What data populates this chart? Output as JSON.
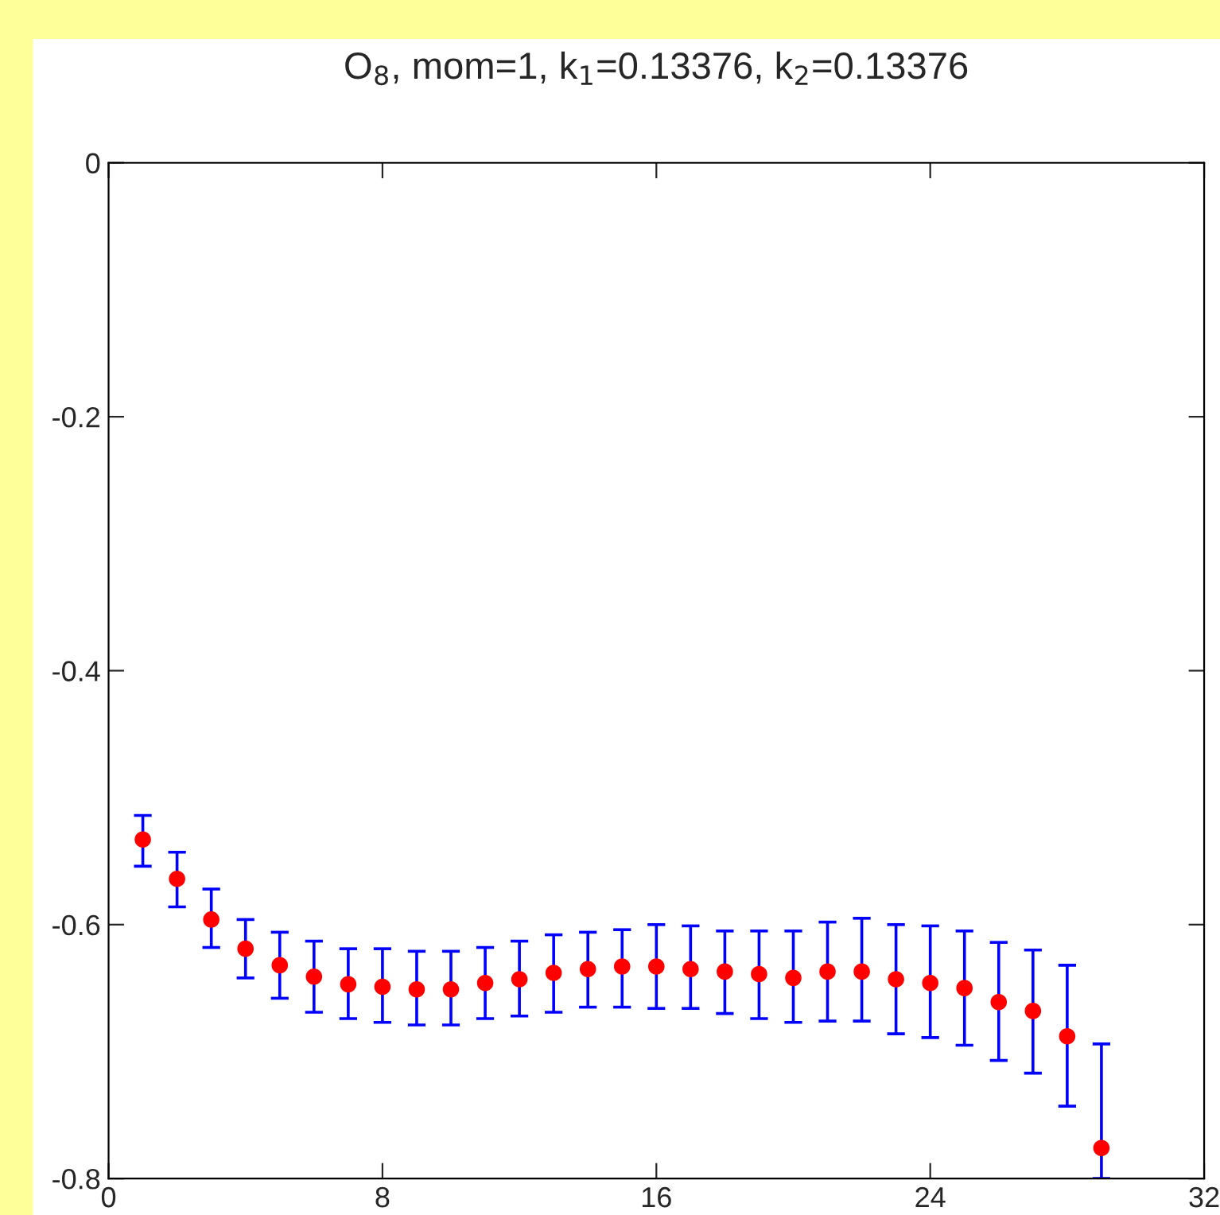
{
  "chart_data": {
    "type": "scatter",
    "title": "O$_{8}$, mom=1, k$_{1}$=0.13376, k$_{2}$=0.13376",
    "x": [
      1,
      2,
      3,
      4,
      5,
      6,
      7,
      8,
      9,
      10,
      11,
      12,
      13,
      14,
      15,
      16,
      17,
      18,
      19,
      20,
      21,
      22,
      23,
      24,
      25,
      26,
      27,
      28,
      29
    ],
    "series": [
      {
        "color": "#ff0000",
        "values": [
          -0.533,
          -0.564,
          -0.596,
          -0.619,
          -0.632,
          -0.641,
          -0.647,
          -0.649,
          -0.651,
          -0.651,
          -0.646,
          -0.643,
          -0.638,
          -0.635,
          -0.633,
          -0.633,
          -0.635,
          -0.637,
          -0.639,
          -0.642,
          -0.637,
          -0.637,
          -0.643,
          -0.646,
          -0.65,
          -0.661,
          -0.668,
          -0.688,
          -0.776
        ],
        "errors": [
          [
            -0.554,
            -0.514
          ],
          [
            -0.586,
            -0.543
          ],
          [
            -0.618,
            -0.572
          ],
          [
            -0.642,
            -0.596
          ],
          [
            -0.658,
            -0.606
          ],
          [
            -0.669,
            -0.613
          ],
          [
            -0.674,
            -0.619
          ],
          [
            -0.677,
            -0.619
          ],
          [
            -0.679,
            -0.621
          ],
          [
            -0.679,
            -0.621
          ],
          [
            -0.674,
            -0.618
          ],
          [
            -0.672,
            -0.613
          ],
          [
            -0.669,
            -0.608
          ],
          [
            -0.665,
            -0.606
          ],
          [
            -0.665,
            -0.604
          ],
          [
            -0.666,
            -0.6
          ],
          [
            -0.666,
            -0.601
          ],
          [
            -0.67,
            -0.605
          ],
          [
            -0.674,
            -0.605
          ],
          [
            -0.677,
            -0.605
          ],
          [
            -0.676,
            -0.598
          ],
          [
            -0.676,
            -0.595
          ],
          [
            -0.686,
            -0.6
          ],
          [
            -0.689,
            -0.601
          ],
          [
            -0.695,
            -0.605
          ],
          [
            -0.707,
            -0.614
          ],
          [
            -0.717,
            -0.62
          ],
          [
            -0.743,
            -0.632
          ],
          [
            -0.8,
            -0.694
          ]
        ]
      }
    ],
    "marker": "circle",
    "grid": false,
    "xlim": [
      0,
      32
    ],
    "xticks": [
      0,
      8,
      16,
      24,
      32
    ],
    "ylim": [
      -0.8,
      0
    ],
    "yticks": [
      {
        "value": -0.8,
        "label": "-0.8"
      },
      {
        "value": -0.6,
        "label": "-0.6"
      },
      {
        "value": -0.4,
        "label": "-0.4"
      },
      {
        "value": -0.2,
        "label": "-0.2"
      },
      0
    ]
  }
}
